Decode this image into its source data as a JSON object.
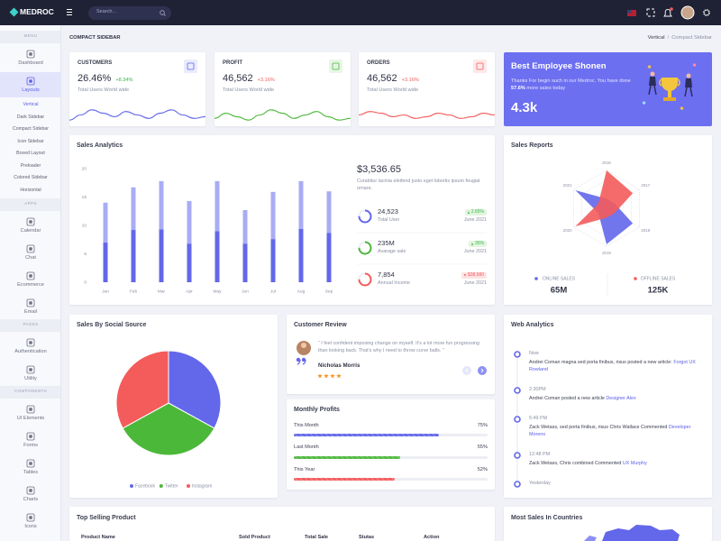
{
  "navbar": {
    "brand": "MEDROC",
    "search": "Search..."
  },
  "sidebar": [
    {
      "title": "MENU",
      "items": [
        {
          "label": "Dashboard"
        },
        {
          "label": "Layouts",
          "active": true,
          "subitems": [
            "Vertical",
            "Dark Sidebar",
            "Compact Sidebar",
            "Icon Sidebar",
            "Boxed Layout",
            "Preloader",
            "Colored Sidebar",
            "Horizontal"
          ],
          "active_subitem": 0
        }
      ]
    },
    {
      "title": "APPS",
      "items": [
        {
          "label": "Calendar"
        },
        {
          "label": "Chat"
        },
        {
          "label": "Ecommerce"
        },
        {
          "label": "Email"
        }
      ]
    },
    {
      "title": "PAGES",
      "items": [
        {
          "label": "Authentication"
        },
        {
          "label": "Utility"
        }
      ]
    },
    {
      "title": "COMPONENTS",
      "items": [
        {
          "label": "UI Elements"
        },
        {
          "label": "Forms"
        },
        {
          "label": "Tables"
        },
        {
          "label": "Charts"
        },
        {
          "label": "Icons"
        }
      ]
    }
  ],
  "breadcrumb": {
    "title": "COMPACT SIDEBAR",
    "trail": [
      "Vertical",
      "Compact Sidebar"
    ],
    "separator": "/"
  },
  "stats": [
    {
      "title": "CUSTOMERS",
      "value": "26.46%",
      "change": "+8.34%",
      "change_color": "#3bb54a",
      "note": "Total Users World wide",
      "color": "#6367ea"
    },
    {
      "title": "PROFIT",
      "value": "46,562",
      "change": "+3.16%",
      "change_color": "#f45b5b",
      "note": "Total Users World wide",
      "color": "#4cb83a"
    },
    {
      "title": "ORDERS",
      "value": "46,562",
      "change": "+3.16%",
      "change_color": "#f45b5b",
      "note": "Total Users World wide",
      "color": "#f45b5b"
    }
  ],
  "employee": {
    "title": "Best Employee Shonen",
    "text_before": "Thanks For begin such in our Medroc. You have done ",
    "highlight": "57.6%",
    "text_after": " more sales today",
    "value": "4.3k"
  },
  "sales_analytics": {
    "title": "Sales Analytics",
    "total": "$3,536.65",
    "description": "Curabitur lacinia eleifend justo eget lobortis ipsum feugiat ornare.",
    "items": [
      {
        "value": "24,523",
        "label": "Total User",
        "badge": "2.65%",
        "trend": "up",
        "date": "June 2021",
        "color": "#6367ea"
      },
      {
        "value": "235M",
        "label": "Avarage sale",
        "badge": "35%",
        "trend": "up",
        "date": "June 2021",
        "color": "#4cb83a"
      },
      {
        "value": "7,854",
        "label": "Annual Income",
        "badge": "$38,580",
        "trend": "down",
        "date": "June 2021",
        "color": "#f45b5b"
      }
    ]
  },
  "sales_reports": {
    "title": "Sales Reports"
  },
  "social_source": {
    "title": "Sales By Social Source"
  },
  "customer_review": {
    "title": "Customer Review",
    "quote": "“ I feel confident imposing change on myself. It's a lot more fun progressing than looking back. That's why I need to throw curve balls. ”",
    "name": "Nicholas Morris",
    "rating": 4
  },
  "monthly_profits": {
    "title": "Monthly Profits",
    "rows": [
      {
        "label": "This Month",
        "value": 75,
        "value_label": "75%",
        "color": "#6367ea"
      },
      {
        "label": "Last Month",
        "value": 55,
        "value_label": "55%",
        "color": "#4cb83a"
      },
      {
        "label": "This Year",
        "value": 52,
        "value_label": "52%",
        "color": "#f45b5b"
      }
    ]
  },
  "web_analytics": {
    "title": "Web Analytics",
    "events": [
      {
        "time": "Now",
        "text": "Andrei Coman magna sed porta finibus, risus posted a new article: ",
        "link": "Forgot UX Rowland"
      },
      {
        "time": "2:30PM",
        "text": "Andrei Coman posted a new article ",
        "link": "Designer Alex"
      },
      {
        "time": "5:49 PM",
        "text": "Zack Wetass, sed porta finibus, risus Chris Wallace Commented ",
        "link": "Developer Moreno"
      },
      {
        "time": "12:48 PM",
        "text": "Zack Wetass, Chris combined Commented ",
        "link": "UX Murphy"
      },
      {
        "time": "Yesterday"
      }
    ]
  },
  "top_selling": {
    "title": "Top Selling Product",
    "columns": [
      "Product Name",
      "Sold Product",
      "Total Sale",
      "Stutas",
      "Action"
    ]
  },
  "countries": {
    "title": "Most Sales In Countries"
  },
  "chart_data": [
    {
      "type": "bar",
      "stacked": true,
      "categories": [
        "Jan",
        "Feb",
        "Mar",
        "Apr",
        "May",
        "Jun",
        "Jul",
        "Aug",
        "Sep"
      ],
      "series": [
        {
          "color": "#6367ea",
          "values": [
            7,
            9.2,
            9.3,
            6.8,
            9,
            6.8,
            7.6,
            9.4,
            8.7
          ]
        },
        {
          "color": "#a9acf4",
          "values": [
            7,
            7.5,
            8.5,
            7.5,
            8.8,
            5.9,
            8.3,
            8.4,
            7.3
          ]
        }
      ],
      "ylim": [
        0,
        20
      ],
      "yticks": [
        0,
        5,
        10,
        15,
        20
      ],
      "grid": false
    },
    {
      "type": "radar",
      "categories": [
        "2016",
        "2017",
        "2018",
        "2019",
        "2020",
        "2021"
      ],
      "rlim": [
        0,
        100
      ],
      "series": [
        {
          "name": "ONLINE SALES",
          "color": "#6367ea",
          "values": [
            25,
            25,
            80,
            95,
            25,
            95
          ],
          "total": "65M"
        },
        {
          "name": "OFFLINE SALES",
          "color": "#f45b5b",
          "values": [
            100,
            80,
            25,
            25,
            95,
            25
          ],
          "total": "125K"
        }
      ]
    },
    {
      "type": "pie",
      "categories": [
        "Facebook",
        "Twitter",
        "Instagram"
      ],
      "values": [
        33,
        34,
        33
      ],
      "colors": [
        "#6367ea",
        "#4cb83a",
        "#f45b5b"
      ]
    },
    {
      "type": "line",
      "color": "#6367ea",
      "values": [
        2,
        5,
        8,
        6,
        4,
        7,
        5,
        3,
        6,
        8,
        5,
        3,
        4
      ],
      "ylim": [
        0,
        10
      ]
    },
    {
      "type": "line",
      "color": "#4cb83a",
      "values": [
        3,
        6,
        4,
        2,
        5,
        8,
        6,
        3,
        5,
        7,
        4,
        2,
        3
      ],
      "ylim": [
        0,
        10
      ]
    },
    {
      "type": "line",
      "color": "#f45b5b",
      "values": [
        5,
        7,
        6,
        4,
        5,
        3,
        4,
        6,
        5,
        3,
        4,
        6,
        5
      ],
      "ylim": [
        0,
        10
      ]
    }
  ]
}
